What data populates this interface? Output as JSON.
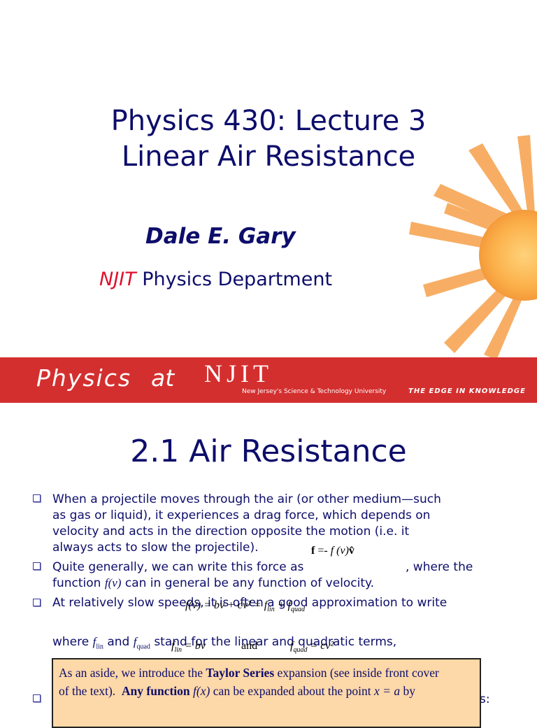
{
  "slide1": {
    "title_line1": "Physics 430: Lecture 3",
    "title_line2": "Linear Air Resistance",
    "author": "Dale E. Gary",
    "dept_prefix": "NJIT",
    "dept": "Physics Department",
    "banner": {
      "physics": "Physics",
      "at": "at",
      "njit": "NJIT",
      "university": "New Jersey's Science & Technology University",
      "tagline": "THE EDGE IN KNOWLEDGE"
    }
  },
  "slide2": {
    "title": "2.1 Air Resistance",
    "bullets": [
      [
        "When a projectile moves through the air (or other medium—such",
        "as gas or liquid), it experiences a drag force, which depends on",
        "velocity and acts in the direction opposite the motion (i.e. it",
        "always acts to slow the projectile)."
      ],
      [
        "Quite generally, we can write this force as",
        ", where the",
        "function",
        "f(v)",
        "can in general be any function of velocity."
      ],
      [
        "At relatively slow speeds, it is often a good approximation to write"
      ],
      [
        "where",
        "f",
        "lin",
        "and",
        "f",
        "quad",
        "stand for the linear and quadratic terms,"
      ],
      [
        "s:"
      ]
    ],
    "equations": [
      [
        "f",
        "=-",
        "f (v)",
        "v̂"
      ],
      [
        "f(v) = bv + cv² = f",
        "lin",
        "+ f",
        "quad"
      ],
      [
        "f",
        "lin",
        "= bv",
        "and",
        "f",
        "quad",
        "= cv²"
      ]
    ],
    "aside": [
      "As an aside, we introduce the",
      "Taylor Series",
      "expansion (see inside front cover",
      "of the text).",
      "Any function",
      "f(x)",
      "can be expanded about the point",
      "x = a",
      "by"
    ]
  }
}
